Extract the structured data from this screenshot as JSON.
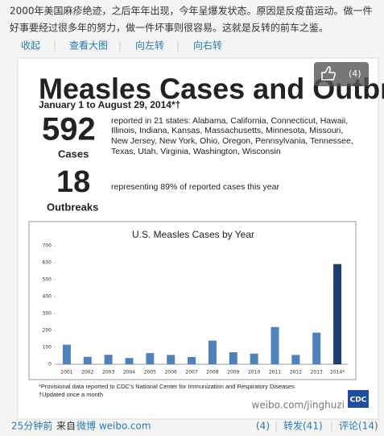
{
  "post": {
    "text_lines": [
      "2000年美国麻疹绝迹，之后年年出现，今年呈爆发状态。原因是反疫苗运动。做一件",
      "好事要经过很多年的努力，做一件坏事则很容易。这就是反转的前车之鉴。"
    ],
    "toolbar": [
      "收起",
      "查看大图",
      "向左转",
      "向右转"
    ],
    "likes": "(4)",
    "time": "25分钟前",
    "source_prefix": "来自",
    "source": "微博 weibo.com",
    "repost": "转发(41)",
    "comment": "评论(14)"
  },
  "infographic": {
    "title": "Measles Cases and Outbreaks",
    "subtitle": "January 1 to August 29, 2014*†",
    "cases_number": "592",
    "cases_label": "Cases",
    "cases_text": [
      "reported in 21 states: Alabama, California, Connecticut, Hawaii,",
      "Illinois, Indiana, Kansas, Massachusetts, Minnesota, Missouri,",
      "New Jersey, New York, Ohio, Oregon, Pennsylvania, Tennessee,",
      "Texas, Utah, Virginia, Washington, Wisconsin"
    ],
    "outbreaks_number": "18",
    "outbreaks_label": "Outbreaks",
    "outbreaks_text": "representing 89% of reported cases this year",
    "footnotes": [
      "*Provisional data reported to CDC's National Center for Immunization and Respiratory Diseases",
      "†Updated once a month"
    ],
    "watermark": "weibo.com/jinghuzi",
    "logo": "CDC",
    "chart": {
      "type": "bar",
      "title": "U.S. Measles Cases by Year",
      "categories": [
        "2001",
        "2002",
        "2003",
        "2004",
        "2005",
        "2006",
        "2007",
        "2008",
        "2009",
        "2010",
        "2011",
        "2012",
        "2013",
        "2014*"
      ],
      "values": [
        116,
        44,
        56,
        37,
        66,
        55,
        43,
        140,
        71,
        63,
        220,
        55,
        187,
        592
      ],
      "colors": [
        "#4f81bd",
        "#4f81bd",
        "#4f81bd",
        "#4f81bd",
        "#4f81bd",
        "#4f81bd",
        "#4f81bd",
        "#4f81bd",
        "#4f81bd",
        "#4f81bd",
        "#4f81bd",
        "#4f81bd",
        "#4f81bd",
        "#1f3d6e"
      ],
      "ylim": [
        0,
        700
      ],
      "yticks": [
        0,
        100,
        200,
        300,
        400,
        500,
        600,
        700
      ],
      "grid": false
    }
  }
}
